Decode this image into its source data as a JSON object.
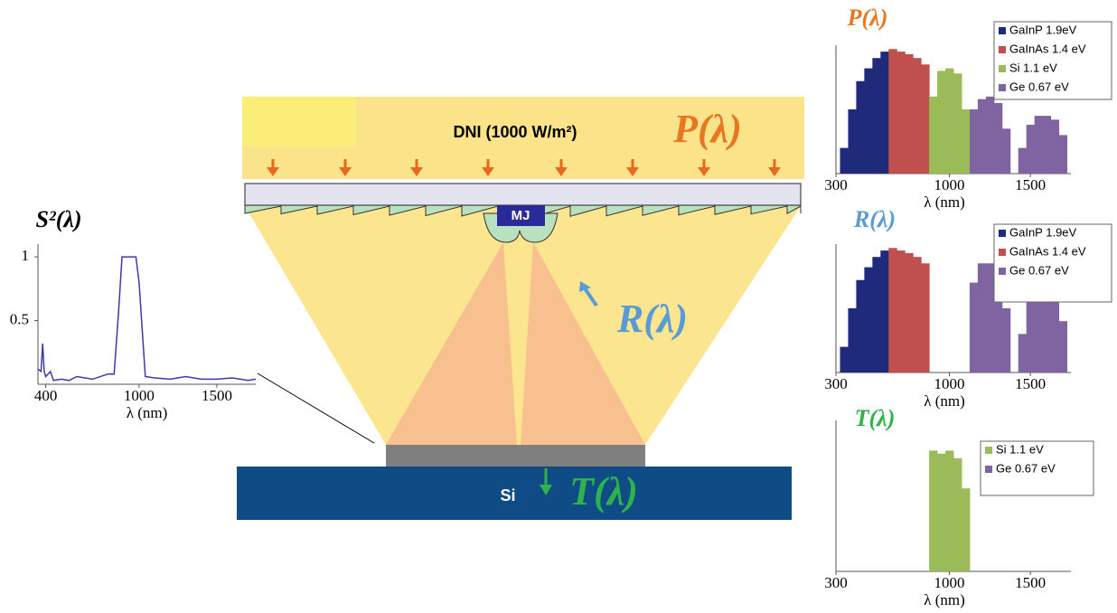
{
  "diagram": {
    "dni_label": "DNI (1000 W/m²)",
    "incident_label": "P(λ)",
    "reflected_label": "R(λ)",
    "transmitted_label": "T(λ)",
    "cell_label": "MJ",
    "substrate_label": "Si"
  },
  "chart_data": [
    {
      "type": "line",
      "title": "S²(λ)",
      "x_label": "λ (nm)",
      "x": [
        350,
        370,
        380,
        390,
        400,
        430,
        450,
        500,
        550,
        600,
        700,
        800,
        840,
        870,
        890,
        980,
        1000,
        1040,
        1100,
        1200,
        1300,
        1400,
        1500,
        1600,
        1700,
        1750
      ],
      "series": [
        {
          "color": "#3a3aa8",
          "values": [
            0.12,
            0.1,
            0.32,
            0.1,
            0.06,
            0.1,
            0.03,
            0.04,
            0.03,
            0.06,
            0.04,
            0.08,
            0.08,
            0.6,
            1,
            1,
            0.8,
            0.06,
            0.05,
            0.04,
            0.06,
            0.04,
            0.04,
            0.05,
            0.03,
            0.04
          ]
        }
      ],
      "xlim": [
        350,
        1750
      ],
      "ylim": [
        0,
        1.1
      ],
      "xticks": [
        400,
        1000,
        1500
      ],
      "yticks": [
        0.5,
        1
      ]
    },
    {
      "type": "area",
      "title": "P(λ)",
      "x_label": "λ (nm)",
      "x": [
        350,
        400,
        450,
        500,
        550,
        600,
        650,
        700,
        750,
        800,
        850,
        900,
        950,
        1000,
        1050,
        1100,
        1150,
        1200,
        1250,
        1300,
        1350,
        1400,
        1450,
        1500,
        1550,
        1600,
        1650,
        1700
      ],
      "series": [
        {
          "name": "GaInP 1.9eV",
          "color": "#1f2a7a",
          "values": [
            0.2,
            0.5,
            0.72,
            0.82,
            0.9,
            0.95,
            null,
            null,
            null,
            null,
            null,
            null,
            null,
            null,
            null,
            null,
            null,
            null,
            null,
            null,
            null,
            null,
            null,
            null,
            null,
            null,
            null,
            null
          ]
        },
        {
          "name": "GaInAs 1.4 eV",
          "color": "#c0504d",
          "values": [
            null,
            null,
            null,
            null,
            null,
            null,
            0.97,
            0.95,
            0.93,
            0.9,
            0.85,
            null,
            null,
            null,
            null,
            null,
            null,
            null,
            null,
            null,
            null,
            null,
            null,
            null,
            null,
            null,
            null,
            null
          ]
        },
        {
          "name": "Si 1.1 eV",
          "color": "#9bbb59",
          "values": [
            null,
            null,
            null,
            null,
            null,
            null,
            null,
            null,
            null,
            null,
            null,
            0.6,
            0.8,
            0.82,
            0.78,
            0.5,
            null,
            null,
            null,
            null,
            null,
            null,
            null,
            null,
            null,
            null,
            null,
            null
          ]
        },
        {
          "name": "Ge 0.67 eV",
          "color": "#8064a2",
          "values": [
            null,
            null,
            null,
            null,
            null,
            null,
            null,
            null,
            null,
            null,
            null,
            null,
            null,
            null,
            null,
            null,
            0.5,
            0.58,
            0.6,
            0.55,
            0.35,
            null,
            0.2,
            0.38,
            0.45,
            0.45,
            0.42,
            0.3
          ]
        }
      ],
      "xlim": [
        300,
        1750
      ],
      "ylim": [
        0,
        1
      ],
      "xticks": [
        300,
        1000,
        1500
      ]
    },
    {
      "type": "area",
      "title": "R(λ)",
      "x_label": "λ (nm)",
      "x": [
        350,
        400,
        450,
        500,
        550,
        600,
        650,
        700,
        750,
        800,
        850,
        900,
        950,
        1000,
        1050,
        1100,
        1150,
        1200,
        1250,
        1300,
        1350,
        1400,
        1450,
        1500,
        1550,
        1600,
        1650,
        1700
      ],
      "series": [
        {
          "name": "GaInP 1.9eV",
          "color": "#1f2a7a",
          "values": [
            0.2,
            0.5,
            0.72,
            0.82,
            0.9,
            0.95,
            null,
            null,
            null,
            null,
            null,
            null,
            null,
            null,
            null,
            null,
            null,
            null,
            null,
            null,
            null,
            null,
            null,
            null,
            null,
            null,
            null,
            null
          ]
        },
        {
          "name": "GaInAs 1.4 eV",
          "color": "#c0504d",
          "values": [
            null,
            null,
            null,
            null,
            null,
            null,
            0.97,
            0.95,
            0.93,
            0.9,
            0.85,
            null,
            null,
            null,
            null,
            null,
            null,
            null,
            null,
            null,
            null,
            null,
            null,
            null,
            null,
            null,
            null,
            null
          ]
        },
        {
          "name": "Ge 0.67 eV",
          "color": "#8064a2",
          "values": [
            null,
            null,
            null,
            null,
            null,
            null,
            null,
            null,
            null,
            null,
            null,
            null,
            null,
            null,
            null,
            null,
            0.7,
            0.85,
            0.85,
            0.8,
            0.5,
            null,
            0.3,
            0.55,
            0.6,
            0.6,
            0.55,
            0.4
          ]
        }
      ],
      "xlim": [
        300,
        1750
      ],
      "ylim": [
        0,
        1
      ],
      "xticks": [
        300,
        1000,
        1500
      ]
    },
    {
      "type": "area",
      "title": "T(λ)",
      "x_label": "λ (nm)",
      "x": [
        350,
        400,
        450,
        500,
        550,
        600,
        650,
        700,
        750,
        800,
        850,
        900,
        950,
        1000,
        1050,
        1100,
        1150,
        1200,
        1250,
        1300,
        1350,
        1400,
        1450,
        1500,
        1550,
        1600,
        1650,
        1700
      ],
      "series": [
        {
          "name": "Si 1.1 eV",
          "color": "#9bbb59",
          "values": [
            null,
            null,
            null,
            null,
            null,
            null,
            null,
            null,
            null,
            null,
            null,
            0.8,
            0.78,
            0.8,
            0.75,
            0.55,
            null,
            null,
            null,
            null,
            null,
            null,
            null,
            null,
            null,
            null,
            null,
            null
          ]
        },
        {
          "name": "Ge 0.67 eV",
          "color": "#8064a2",
          "values": [
            null,
            null,
            null,
            null,
            null,
            null,
            null,
            null,
            null,
            null,
            null,
            null,
            null,
            null,
            null,
            null,
            null,
            null,
            null,
            null,
            null,
            null,
            null,
            null,
            null,
            null,
            null,
            null
          ]
        }
      ],
      "xlim": [
        300,
        1750
      ],
      "ylim": [
        0,
        1
      ],
      "xticks": [
        300,
        1000,
        1500
      ]
    }
  ]
}
